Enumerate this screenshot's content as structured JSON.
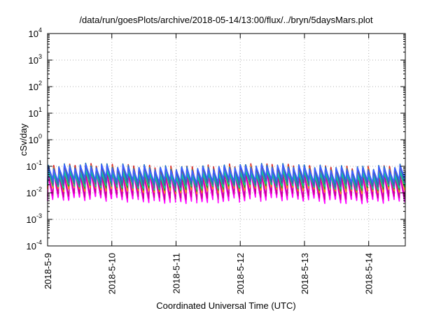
{
  "chart_data": {
    "type": "line",
    "title": "/data/run/goesPlots/archive/2018-05-14/13:00/flux/../bryn/5daysMars.plot",
    "xlabel": "Coordinated Universal Time (UTC)",
    "ylabel": "cSv/day",
    "yscale": "log",
    "ylim": [
      0.0001,
      10000
    ],
    "y_ticks": [
      {
        "value": 0.0001,
        "base": "10",
        "exp": "-4"
      },
      {
        "value": 0.001,
        "base": "10",
        "exp": "-3"
      },
      {
        "value": 0.01,
        "base": "10",
        "exp": "-2"
      },
      {
        "value": 0.1,
        "base": "10",
        "exp": "-1"
      },
      {
        "value": 1,
        "base": "10",
        "exp": "0"
      },
      {
        "value": 10,
        "base": "10",
        "exp": "1"
      },
      {
        "value": 100,
        "base": "10",
        "exp": "2"
      },
      {
        "value": 1000,
        "base": "10",
        "exp": "3"
      },
      {
        "value": 10000,
        "base": "10",
        "exp": "4"
      }
    ],
    "x_ticks": [
      "2018-5-9",
      "2018-5-10",
      "2018-5-11",
      "2018-5-12",
      "2018-5-13",
      "2018-5-14"
    ],
    "xlim_days": [
      0,
      5.57
    ],
    "grid": true,
    "legend": "none",
    "sawtooth_period_days": 0.083,
    "series": [
      {
        "color": "#ff00ff",
        "peak": 0.045,
        "trough": 0.005
      },
      {
        "color": "#cc0099",
        "peak": 0.055,
        "trough": 0.007
      },
      {
        "color": "#d62728",
        "peak": 0.1,
        "trough": 0.013
      },
      {
        "color": "#ff7f0e",
        "peak": 0.085,
        "trough": 0.012
      },
      {
        "color": "#2ca02c",
        "peak": 0.06,
        "trough": 0.015
      },
      {
        "color": "#17becf",
        "peak": 0.065,
        "trough": 0.018
      },
      {
        "color": "#00cc99",
        "peak": 0.05,
        "trough": 0.017
      },
      {
        "color": "#6a3d9a",
        "peak": 0.09,
        "trough": 0.02
      },
      {
        "color": "#1f77b4",
        "peak": 0.1,
        "trough": 0.023
      },
      {
        "color": "#3f5fff",
        "peak": 0.09,
        "trough": 0.03
      }
    ]
  }
}
